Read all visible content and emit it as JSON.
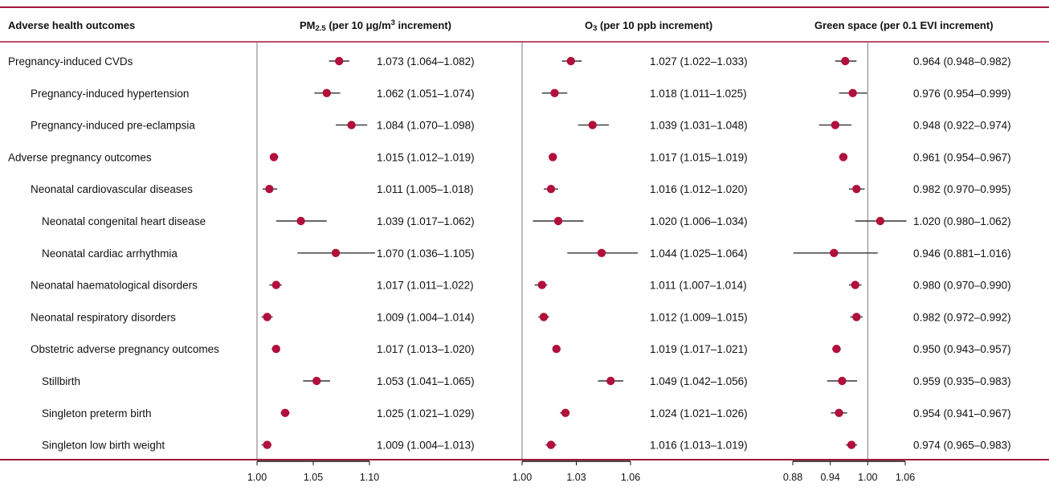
{
  "header": {
    "outcome_col": "Adverse health outcomes",
    "panels": [
      {
        "main": "PM",
        "sub": "2.5",
        "rest": " (per 10 μg/m",
        "sup": "3",
        "tail": " increment)"
      },
      {
        "main": "O",
        "sub": "3",
        "rest": " (per 10 ppb increment)",
        "sup": "",
        "tail": ""
      },
      {
        "main": "Green space (per 0.1 EVI increment)",
        "sub": "",
        "rest": "",
        "sup": "",
        "tail": ""
      }
    ]
  },
  "colors": {
    "accent_rule": "#a5163a",
    "point": "#b0103a",
    "whisker": "#333333",
    "ref_line": "#777777"
  },
  "chart_data": {
    "type": "forest",
    "rows": [
      {
        "label": "Pregnancy-induced CVDs",
        "indent": 0
      },
      {
        "label": "Pregnancy-induced hypertension",
        "indent": 1
      },
      {
        "label": "Pregnancy-induced pre-eclampsia",
        "indent": 1
      },
      {
        "label": "Adverse pregnancy outcomes",
        "indent": 0
      },
      {
        "label": "Neonatal cardiovascular diseases",
        "indent": 1
      },
      {
        "label": "Neonatal congenital heart disease",
        "indent": 2
      },
      {
        "label": "Neonatal cardiac arrhythmia",
        "indent": 2
      },
      {
        "label": "Neonatal haematological disorders",
        "indent": 1
      },
      {
        "label": "Neonatal respiratory disorders",
        "indent": 1
      },
      {
        "label": "Obstetric adverse pregnancy outcomes",
        "indent": 1
      },
      {
        "label": "Stillbirth",
        "indent": 2
      },
      {
        "label": "Singleton preterm birth",
        "indent": 2
      },
      {
        "label": "Singleton low birth weight",
        "indent": 2
      }
    ],
    "panels": [
      {
        "name": "PM2.5",
        "xlim": [
          1.0,
          1.1
        ],
        "ticks": [
          1.0,
          1.05,
          1.1
        ],
        "tick_labels": [
          "1.00",
          "1.05",
          "1.10"
        ],
        "reference": 1.0,
        "estimates": [
          {
            "est": 1.073,
            "lo": 1.064,
            "hi": 1.082,
            "text": "1.073 (1.064–1.082)"
          },
          {
            "est": 1.062,
            "lo": 1.051,
            "hi": 1.074,
            "text": "1.062 (1.051–1.074)"
          },
          {
            "est": 1.084,
            "lo": 1.07,
            "hi": 1.098,
            "text": "1.084 (1.070–1.098)"
          },
          {
            "est": 1.015,
            "lo": 1.012,
            "hi": 1.019,
            "text": "1.015 (1.012–1.019)"
          },
          {
            "est": 1.011,
            "lo": 1.005,
            "hi": 1.018,
            "text": "1.011 (1.005–1.018)"
          },
          {
            "est": 1.039,
            "lo": 1.017,
            "hi": 1.062,
            "text": "1.039 (1.017–1.062)"
          },
          {
            "est": 1.07,
            "lo": 1.036,
            "hi": 1.105,
            "text": "1.070 (1.036–1.105)"
          },
          {
            "est": 1.017,
            "lo": 1.011,
            "hi": 1.022,
            "text": "1.017 (1.011–1.022)"
          },
          {
            "est": 1.009,
            "lo": 1.004,
            "hi": 1.014,
            "text": "1.009 (1.004–1.014)"
          },
          {
            "est": 1.017,
            "lo": 1.013,
            "hi": 1.02,
            "text": "1.017 (1.013–1.020)"
          },
          {
            "est": 1.053,
            "lo": 1.041,
            "hi": 1.065,
            "text": "1.053 (1.041–1.065)"
          },
          {
            "est": 1.025,
            "lo": 1.021,
            "hi": 1.029,
            "text": "1.025 (1.021–1.029)"
          },
          {
            "est": 1.009,
            "lo": 1.004,
            "hi": 1.013,
            "text": "1.009 (1.004–1.013)"
          }
        ]
      },
      {
        "name": "O3",
        "xlim": [
          1.0,
          1.06
        ],
        "ticks": [
          1.0,
          1.03,
          1.06
        ],
        "tick_labels": [
          "1.00",
          "1.03",
          "1.06"
        ],
        "reference": 1.0,
        "estimates": [
          {
            "est": 1.027,
            "lo": 1.022,
            "hi": 1.033,
            "text": "1.027 (1.022–1.033)"
          },
          {
            "est": 1.018,
            "lo": 1.011,
            "hi": 1.025,
            "text": "1.018 (1.011–1.025)"
          },
          {
            "est": 1.039,
            "lo": 1.031,
            "hi": 1.048,
            "text": "1.039 (1.031–1.048)"
          },
          {
            "est": 1.017,
            "lo": 1.015,
            "hi": 1.019,
            "text": "1.017 (1.015–1.019)"
          },
          {
            "est": 1.016,
            "lo": 1.012,
            "hi": 1.02,
            "text": "1.016 (1.012–1.020)"
          },
          {
            "est": 1.02,
            "lo": 1.006,
            "hi": 1.034,
            "text": "1.020 (1.006–1.034)"
          },
          {
            "est": 1.044,
            "lo": 1.025,
            "hi": 1.064,
            "text": "1.044 (1.025–1.064)"
          },
          {
            "est": 1.011,
            "lo": 1.007,
            "hi": 1.014,
            "text": "1.011 (1.007–1.014)"
          },
          {
            "est": 1.012,
            "lo": 1.009,
            "hi": 1.015,
            "text": "1.012 (1.009–1.015)"
          },
          {
            "est": 1.019,
            "lo": 1.017,
            "hi": 1.021,
            "text": "1.019 (1.017–1.021)"
          },
          {
            "est": 1.049,
            "lo": 1.042,
            "hi": 1.056,
            "text": "1.049 (1.042–1.056)"
          },
          {
            "est": 1.024,
            "lo": 1.021,
            "hi": 1.026,
            "text": "1.024 (1.021–1.026)"
          },
          {
            "est": 1.016,
            "lo": 1.013,
            "hi": 1.019,
            "text": "1.016 (1.013–1.019)"
          }
        ]
      },
      {
        "name": "Green space",
        "xlim": [
          0.88,
          1.06
        ],
        "ticks": [
          0.88,
          0.94,
          1.0,
          1.06
        ],
        "tick_labels": [
          "0.88",
          "0.94",
          "1.00",
          "1.06"
        ],
        "reference": 1.0,
        "estimates": [
          {
            "est": 0.964,
            "lo": 0.948,
            "hi": 0.982,
            "text": "0.964 (0.948–0.982)"
          },
          {
            "est": 0.976,
            "lo": 0.954,
            "hi": 0.999,
            "text": "0.976 (0.954–0.999)"
          },
          {
            "est": 0.948,
            "lo": 0.922,
            "hi": 0.974,
            "text": "0.948 (0.922–0.974)"
          },
          {
            "est": 0.961,
            "lo": 0.954,
            "hi": 0.967,
            "text": "0.961 (0.954–0.967)"
          },
          {
            "est": 0.982,
            "lo": 0.97,
            "hi": 0.995,
            "text": "0.982 (0.970–0.995)"
          },
          {
            "est": 1.02,
            "lo": 0.98,
            "hi": 1.062,
            "text": "1.020 (0.980–1.062)"
          },
          {
            "est": 0.946,
            "lo": 0.881,
            "hi": 1.016,
            "text": "0.946 (0.881–1.016)"
          },
          {
            "est": 0.98,
            "lo": 0.97,
            "hi": 0.99,
            "text": "0.980 (0.970–0.990)"
          },
          {
            "est": 0.982,
            "lo": 0.972,
            "hi": 0.992,
            "text": "0.982 (0.972–0.992)"
          },
          {
            "est": 0.95,
            "lo": 0.943,
            "hi": 0.957,
            "text": "0.950 (0.943–0.957)"
          },
          {
            "est": 0.959,
            "lo": 0.935,
            "hi": 0.983,
            "text": "0.959 (0.935–0.983)"
          },
          {
            "est": 0.954,
            "lo": 0.941,
            "hi": 0.967,
            "text": "0.954 (0.941–0.967)"
          },
          {
            "est": 0.974,
            "lo": 0.965,
            "hi": 0.983,
            "text": "0.974 (0.965–0.983)"
          }
        ]
      }
    ]
  }
}
